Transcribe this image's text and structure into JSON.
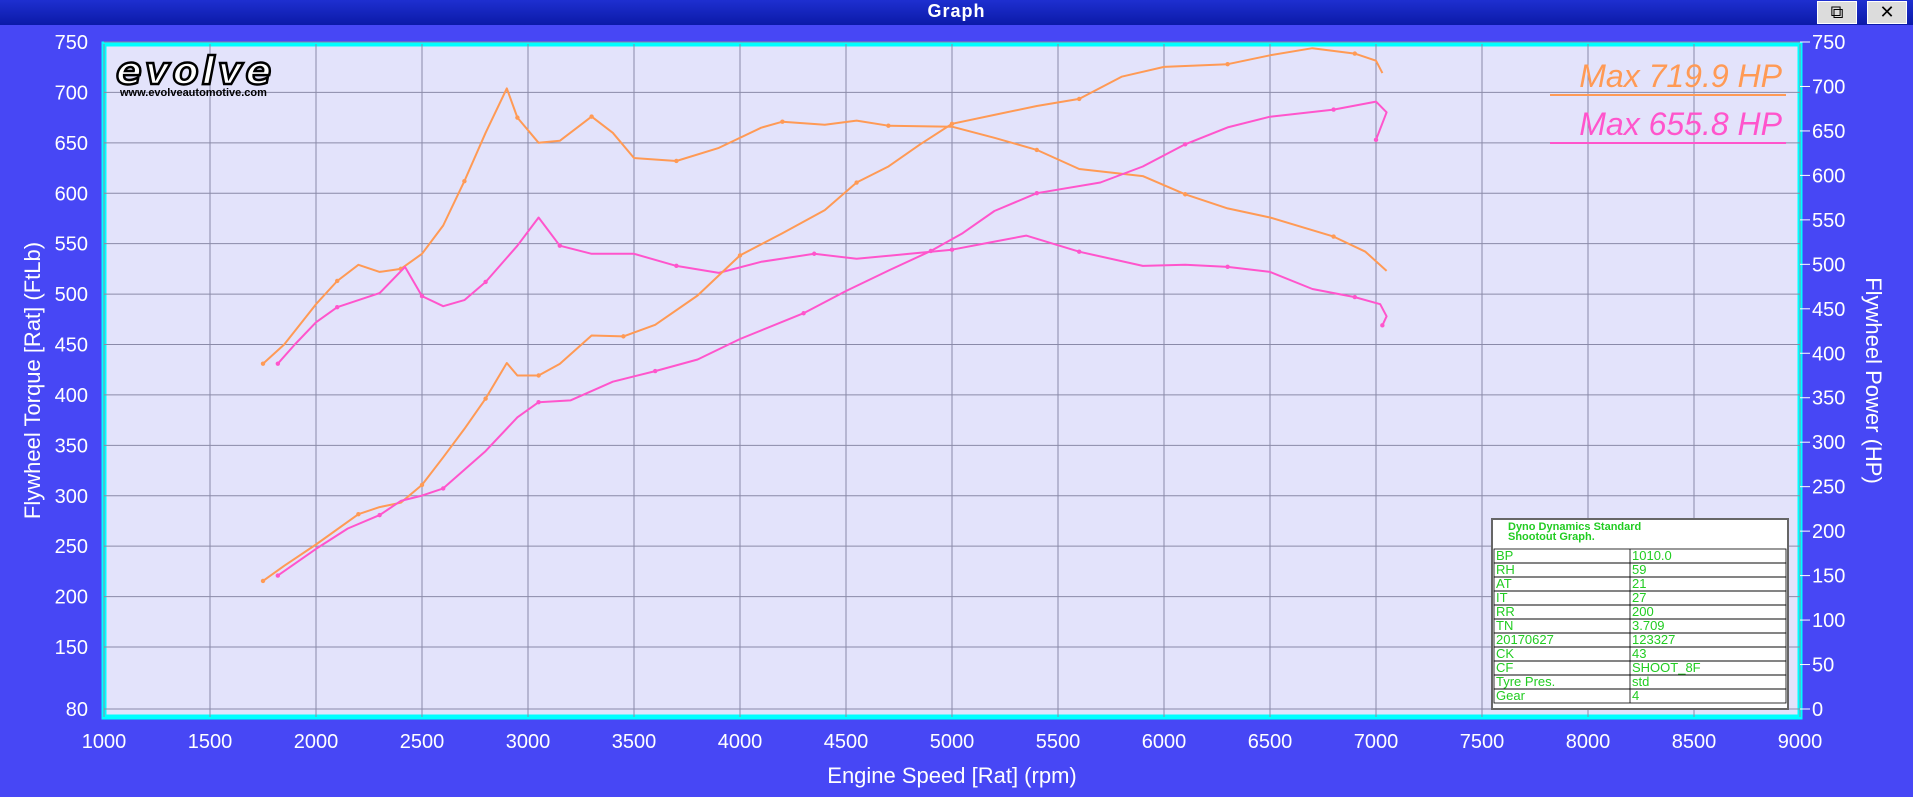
{
  "window": {
    "title": "Graph",
    "restore_icon": "restore-icon",
    "close_icon": "close-icon",
    "restore_glyph": "⧉",
    "close_glyph": "✕"
  },
  "logo": {
    "brand": "evolve",
    "url": "www.evolveautomotive.com"
  },
  "colors": {
    "background": "#4747f5",
    "plot_bg": "#e3e3fb",
    "plot_border": "#00ffff",
    "run1": "#ff9a55",
    "run2": "#ff55cc",
    "table_text": "#22cc22"
  },
  "chart_data": {
    "type": "line",
    "xlabel": "Engine Speed [Rat] (rpm)",
    "ylabel_left": "Flywheel Torque [Rat] (FtLb)",
    "ylabel_right": "Flywheel Power (HP)",
    "xlim": [
      1000,
      9000
    ],
    "ylim_left": [
      80,
      750
    ],
    "ylim_right": [
      0,
      750
    ],
    "x_ticks": [
      1000,
      1500,
      2000,
      2500,
      3000,
      3500,
      4000,
      4500,
      5000,
      5500,
      6000,
      6500,
      7000,
      7500,
      8000,
      8500,
      9000
    ],
    "y_ticks_left": [
      80,
      150,
      200,
      250,
      300,
      350,
      400,
      450,
      500,
      550,
      600,
      650,
      700,
      750
    ],
    "y_ticks_right": [
      0,
      50,
      100,
      150,
      200,
      250,
      300,
      350,
      400,
      450,
      500,
      550,
      600,
      650,
      700,
      750
    ],
    "grid": true,
    "annotations": [
      {
        "text": "Max 719.9 HP",
        "color": "#ff9a55"
      },
      {
        "text": "Max 655.8 HP",
        "color": "#ff55cc"
      }
    ],
    "series": [
      {
        "axis": "left",
        "color": "#ff9a55",
        "points": [
          [
            1750,
            431
          ],
          [
            1850,
            450
          ],
          [
            2000,
            490
          ],
          [
            2100,
            513
          ],
          [
            2200,
            529
          ],
          [
            2300,
            522
          ],
          [
            2400,
            525
          ],
          [
            2500,
            540
          ],
          [
            2600,
            568
          ],
          [
            2700,
            612
          ],
          [
            2800,
            660
          ],
          [
            2900,
            704
          ],
          [
            2950,
            675
          ],
          [
            3050,
            650
          ],
          [
            3150,
            652
          ],
          [
            3300,
            676
          ],
          [
            3400,
            660
          ],
          [
            3500,
            635
          ],
          [
            3700,
            632
          ],
          [
            3900,
            645
          ],
          [
            4100,
            665
          ],
          [
            4200,
            671
          ],
          [
            4400,
            668
          ],
          [
            4550,
            672
          ],
          [
            4700,
            667
          ],
          [
            5000,
            666
          ],
          [
            5200,
            655
          ],
          [
            5400,
            643
          ],
          [
            5600,
            624
          ],
          [
            5900,
            617
          ],
          [
            6100,
            599
          ],
          [
            6300,
            585
          ],
          [
            6500,
            576
          ],
          [
            6800,
            557
          ],
          [
            6950,
            542
          ],
          [
            7050,
            523
          ]
        ]
      },
      {
        "axis": "left",
        "color": "#ff55cc",
        "points": [
          [
            1820,
            431
          ],
          [
            1900,
            450
          ],
          [
            2000,
            472
          ],
          [
            2100,
            487
          ],
          [
            2300,
            501
          ],
          [
            2420,
            527
          ],
          [
            2500,
            498
          ],
          [
            2600,
            488
          ],
          [
            2700,
            494
          ],
          [
            2800,
            512
          ],
          [
            2950,
            548
          ],
          [
            3050,
            576
          ],
          [
            3150,
            548
          ],
          [
            3300,
            540
          ],
          [
            3500,
            540
          ],
          [
            3700,
            528
          ],
          [
            3900,
            521
          ],
          [
            4100,
            532
          ],
          [
            4350,
            540
          ],
          [
            4550,
            535
          ],
          [
            4800,
            540
          ],
          [
            5000,
            544
          ],
          [
            5200,
            552
          ],
          [
            5350,
            558
          ],
          [
            5600,
            542
          ],
          [
            5900,
            528
          ],
          [
            6100,
            529
          ],
          [
            6300,
            527
          ],
          [
            6500,
            522
          ],
          [
            6700,
            505
          ],
          [
            6900,
            497
          ],
          [
            7020,
            490
          ],
          [
            7050,
            478
          ],
          [
            7030,
            469
          ]
        ]
      },
      {
        "axis": "right",
        "color": "#ff9a55",
        "points": [
          [
            1750,
            144
          ],
          [
            1850,
            161
          ],
          [
            2000,
            185
          ],
          [
            2200,
            219
          ],
          [
            2300,
            227
          ],
          [
            2400,
            232
          ],
          [
            2500,
            252
          ],
          [
            2600,
            283
          ],
          [
            2700,
            315
          ],
          [
            2800,
            349
          ],
          [
            2900,
            389
          ],
          [
            2950,
            375
          ],
          [
            3050,
            375
          ],
          [
            3150,
            388
          ],
          [
            3300,
            420
          ],
          [
            3450,
            419
          ],
          [
            3600,
            432
          ],
          [
            3800,
            465
          ],
          [
            4000,
            510
          ],
          [
            4200,
            535
          ],
          [
            4400,
            561
          ],
          [
            4550,
            592
          ],
          [
            4700,
            610
          ],
          [
            4850,
            635
          ],
          [
            5000,
            658
          ],
          [
            5200,
            668
          ],
          [
            5400,
            678
          ],
          [
            5600,
            686
          ],
          [
            5800,
            711
          ],
          [
            6000,
            722
          ],
          [
            6300,
            725
          ],
          [
            6500,
            735
          ],
          [
            6700,
            743
          ],
          [
            6900,
            737
          ],
          [
            7000,
            729
          ],
          [
            7030,
            715
          ]
        ]
      },
      {
        "axis": "right",
        "color": "#ff55cc",
        "points": [
          [
            1820,
            150
          ],
          [
            2000,
            180
          ],
          [
            2150,
            203
          ],
          [
            2300,
            218
          ],
          [
            2400,
            234
          ],
          [
            2500,
            240
          ],
          [
            2600,
            248
          ],
          [
            2800,
            290
          ],
          [
            2950,
            328
          ],
          [
            3050,
            345
          ],
          [
            3200,
            347
          ],
          [
            3400,
            368
          ],
          [
            3600,
            380
          ],
          [
            3800,
            393
          ],
          [
            4000,
            416
          ],
          [
            4300,
            445
          ],
          [
            4500,
            470
          ],
          [
            4700,
            493
          ],
          [
            4900,
            515
          ],
          [
            5050,
            535
          ],
          [
            5200,
            560
          ],
          [
            5400,
            580
          ],
          [
            5700,
            592
          ],
          [
            5900,
            610
          ],
          [
            6100,
            635
          ],
          [
            6300,
            654
          ],
          [
            6500,
            666
          ],
          [
            6800,
            674
          ],
          [
            7000,
            683
          ],
          [
            7050,
            671
          ],
          [
            7000,
            640
          ]
        ]
      }
    ],
    "info_table": {
      "header": [
        "Dyno Dynamics Standard",
        "Shootout Graph."
      ],
      "rows": [
        [
          "BP",
          "1010.0"
        ],
        [
          "RH",
          "59"
        ],
        [
          "AT",
          "21"
        ],
        [
          "IT",
          "27"
        ],
        [
          "RR",
          "200"
        ],
        [
          "TN",
          "3.709"
        ],
        [
          "20170627",
          "123327"
        ],
        [
          "CK",
          "43"
        ],
        [
          "CF",
          "SHOOT_8F"
        ],
        [
          "Tyre Pres.",
          "std"
        ],
        [
          "Gear",
          "4"
        ]
      ]
    }
  }
}
